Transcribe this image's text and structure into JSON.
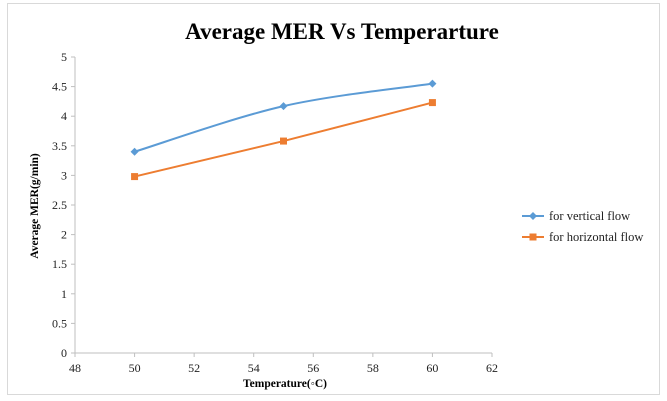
{
  "chart_data": {
    "type": "line",
    "title": "Average MER Vs Temperarture",
    "xlabel": "Temperature(◦C)",
    "ylabel": "Average MER(g/min)",
    "xlim": [
      48,
      62
    ],
    "ylim": [
      0,
      5
    ],
    "xticks": [
      "48",
      "50",
      "52",
      "54",
      "56",
      "58",
      "60",
      "62"
    ],
    "yticks": [
      "0",
      "0.5",
      "1",
      "1.5",
      "2",
      "2.5",
      "3",
      "3.5",
      "4",
      "4.5",
      "5"
    ],
    "grid": false,
    "legend_position": "right",
    "series": [
      {
        "name": "for vertical flow",
        "color": "#5b9bd5",
        "marker": "diamond",
        "smooth": true,
        "x": [
          50,
          55,
          60
        ],
        "y": [
          3.4,
          4.17,
          4.55
        ]
      },
      {
        "name": "for horizontal flow",
        "color": "#ed7d31",
        "marker": "square",
        "smooth": false,
        "x": [
          50,
          55,
          60
        ],
        "y": [
          2.98,
          3.58,
          4.23
        ]
      }
    ]
  }
}
